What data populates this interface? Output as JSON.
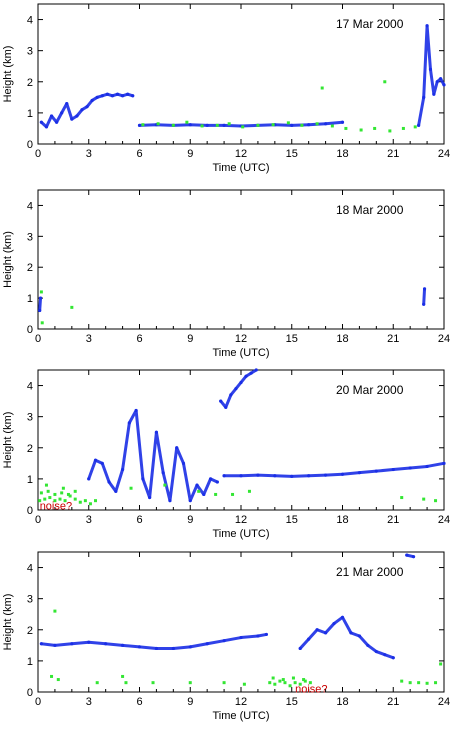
{
  "colors": {
    "series_primary": "#1a2ee6",
    "series_secondary": "#33e633",
    "annotation": "#cc0000",
    "axes": "#000000",
    "background": "#ffffff"
  },
  "chart_data": [
    {
      "type": "scatter",
      "date_label": "17 Mar 2000",
      "xlabel": "Time (UTC)",
      "ylabel": "Height (km)",
      "xlim": [
        0,
        24
      ],
      "ylim": [
        0,
        4.5
      ],
      "x_ticks": [
        0,
        3,
        6,
        9,
        12,
        15,
        18,
        21,
        24
      ],
      "y_ticks": [
        0,
        1,
        2,
        3,
        4
      ],
      "grid": false,
      "series": [
        {
          "color_key": "series_primary",
          "segments": [
            {
              "x": [
                0.2,
                0.5,
                0.8,
                1.1,
                1.4,
                1.7,
                2.0,
                2.3,
                2.6,
                2.9,
                3.2,
                3.5,
                3.8,
                4.1,
                4.4,
                4.7,
                5.0,
                5.3,
                5.6
              ],
              "y": [
                0.7,
                0.55,
                0.9,
                0.7,
                1.0,
                1.3,
                0.8,
                0.9,
                1.1,
                1.2,
                1.4,
                1.5,
                1.55,
                1.6,
                1.55,
                1.6,
                1.55,
                1.6,
                1.55
              ]
            },
            {
              "x": [
                6.0,
                7.0,
                8.0,
                9.0,
                10.0,
                11.0,
                12.0,
                13.0,
                14.0,
                15.0,
                16.0,
                17.0,
                18.0
              ],
              "y": [
                0.6,
                0.62,
                0.6,
                0.62,
                0.6,
                0.6,
                0.58,
                0.6,
                0.62,
                0.6,
                0.62,
                0.65,
                0.7
              ]
            },
            {
              "x": [
                22.5,
                22.8,
                23.0,
                23.2,
                23.4,
                23.6,
                23.8,
                24.0
              ],
              "y": [
                0.6,
                1.5,
                3.8,
                2.4,
                1.6,
                2.0,
                2.1,
                1.9
              ]
            }
          ]
        },
        {
          "color_key": "series_secondary",
          "points": {
            "x": [
              6.2,
              7.1,
              8.0,
              8.8,
              9.7,
              10.6,
              11.3,
              12.1,
              13.0,
              13.9,
              14.8,
              15.6,
              16.5,
              17.4,
              18.2,
              19.1,
              19.9,
              20.8,
              21.6,
              22.3,
              16.8,
              20.5
            ],
            "y": [
              0.62,
              0.65,
              0.6,
              0.7,
              0.58,
              0.6,
              0.65,
              0.55,
              0.6,
              0.62,
              0.68,
              0.6,
              0.65,
              0.58,
              0.5,
              0.45,
              0.5,
              0.42,
              0.5,
              0.55,
              1.8,
              2.0
            ]
          }
        }
      ]
    },
    {
      "type": "scatter",
      "date_label": "18 Mar 2000",
      "xlabel": "Time (UTC)",
      "ylabel": "Height (km)",
      "xlim": [
        0,
        24
      ],
      "ylim": [
        0,
        4.5
      ],
      "x_ticks": [
        0,
        3,
        6,
        9,
        12,
        15,
        18,
        21,
        24
      ],
      "y_ticks": [
        0,
        1,
        2,
        3,
        4
      ],
      "grid": false,
      "series": [
        {
          "color_key": "series_primary",
          "segments": [
            {
              "x": [
                0.1,
                0.15
              ],
              "y": [
                0.6,
                1.0
              ]
            },
            {
              "x": [
                22.8,
                22.85
              ],
              "y": [
                0.8,
                1.3
              ]
            }
          ]
        },
        {
          "color_key": "series_secondary",
          "points": {
            "x": [
              0.2,
              0.25,
              2.0
            ],
            "y": [
              1.2,
              0.2,
              0.7
            ]
          }
        }
      ]
    },
    {
      "type": "scatter",
      "date_label": "20 Mar 2000",
      "xlabel": "Time (UTC)",
      "ylabel": "Height (km)",
      "xlim": [
        0,
        24
      ],
      "ylim": [
        0,
        4.5
      ],
      "x_ticks": [
        0,
        3,
        6,
        9,
        12,
        15,
        18,
        21,
        24
      ],
      "y_ticks": [
        0,
        1,
        2,
        3,
        4
      ],
      "grid": false,
      "annotations": [
        {
          "text": "noise?",
          "x": 0.1,
          "y": 0.15
        }
      ],
      "series": [
        {
          "color_key": "series_primary",
          "segments": [
            {
              "x": [
                3.0,
                3.4,
                3.8,
                4.2,
                4.6,
                5.0,
                5.4,
                5.8,
                6.2,
                6.6,
                7.0,
                7.4,
                7.8,
                8.2,
                8.6,
                9.0,
                9.4,
                9.8,
                10.2,
                10.6
              ],
              "y": [
                1.0,
                1.6,
                1.5,
                0.9,
                0.6,
                1.3,
                2.8,
                3.2,
                1.0,
                0.4,
                2.5,
                1.2,
                0.3,
                2.0,
                1.5,
                0.3,
                0.8,
                0.5,
                1.0,
                0.9
              ]
            },
            {
              "x": [
                10.8,
                11.1,
                11.4,
                11.7,
                12.0,
                12.3,
                12.6,
                12.9
              ],
              "y": [
                3.5,
                3.3,
                3.7,
                3.9,
                4.1,
                4.3,
                4.4,
                4.5
              ]
            },
            {
              "x": [
                11.0,
                12.0,
                13.0,
                14.0,
                15.0,
                16.0,
                17.0,
                18.0,
                19.0,
                20.0,
                21.0,
                22.0,
                23.0,
                24.0
              ],
              "y": [
                1.1,
                1.1,
                1.12,
                1.1,
                1.08,
                1.1,
                1.12,
                1.15,
                1.2,
                1.25,
                1.3,
                1.35,
                1.4,
                1.5
              ]
            }
          ]
        },
        {
          "color_key": "series_secondary",
          "points": {
            "x": [
              0.1,
              0.4,
              0.7,
              1.0,
              1.3,
              1.6,
              1.9,
              2.2,
              2.5,
              2.8,
              3.1,
              3.4,
              0.2,
              0.6,
              1.0,
              1.4,
              1.8,
              2.2,
              0.5,
              1.5,
              5.5,
              7.5,
              9.5,
              10.5,
              11.5,
              12.5,
              21.5,
              22.8,
              23.5
            ],
            "y": [
              0.3,
              0.35,
              0.4,
              0.3,
              0.35,
              0.3,
              0.45,
              0.35,
              0.25,
              0.3,
              0.2,
              0.3,
              0.55,
              0.6,
              0.5,
              0.55,
              0.5,
              0.6,
              0.8,
              0.7,
              0.7,
              0.8,
              0.6,
              0.5,
              0.5,
              0.6,
              0.4,
              0.35,
              0.3
            ]
          }
        }
      ]
    },
    {
      "type": "scatter",
      "date_label": "21 Mar 2000",
      "xlabel": "Time (UTC)",
      "ylabel": "Height (km)",
      "xlim": [
        0,
        24
      ],
      "ylim": [
        0,
        4.5
      ],
      "x_ticks": [
        0,
        3,
        6,
        9,
        12,
        15,
        18,
        21,
        24
      ],
      "y_ticks": [
        0,
        1,
        2,
        3,
        4
      ],
      "grid": false,
      "annotations": [
        {
          "text": "noise?",
          "x": 15.2,
          "y": 0.12
        }
      ],
      "series": [
        {
          "color_key": "series_primary",
          "segments": [
            {
              "x": [
                0.2,
                1.0,
                2.0,
                3.0,
                4.0,
                5.0,
                6.0,
                7.0,
                8.0,
                9.0,
                10.0,
                11.0,
                12.0,
                13.0,
                13.5
              ],
              "y": [
                1.55,
                1.5,
                1.55,
                1.6,
                1.55,
                1.5,
                1.45,
                1.4,
                1.4,
                1.45,
                1.55,
                1.65,
                1.75,
                1.8,
                1.85
              ]
            },
            {
              "x": [
                15.5,
                16.0,
                16.5,
                17.0,
                17.5,
                18.0,
                18.5,
                19.0,
                19.5,
                20.0,
                20.5,
                21.0
              ],
              "y": [
                1.4,
                1.7,
                2.0,
                1.9,
                2.2,
                2.4,
                1.9,
                1.8,
                1.5,
                1.3,
                1.2,
                1.1
              ]
            },
            {
              "x": [
                21.8,
                22.2
              ],
              "y": [
                4.4,
                4.35
              ]
            }
          ]
        },
        {
          "color_key": "series_secondary",
          "points": {
            "x": [
              13.7,
              14.0,
              14.3,
              14.6,
              14.9,
              15.2,
              15.5,
              15.8,
              16.1,
              13.9,
              14.5,
              15.1,
              15.7,
              1.0,
              1.2,
              3.5,
              5.0,
              5.2,
              6.8,
              9.0,
              11.0,
              12.2,
              21.5,
              22.0,
              22.5,
              23.0,
              23.5,
              23.8,
              0.8
            ],
            "y": [
              0.3,
              0.25,
              0.35,
              0.3,
              0.2,
              0.3,
              0.25,
              0.35,
              0.3,
              0.45,
              0.4,
              0.45,
              0.4,
              2.6,
              0.4,
              0.3,
              0.5,
              0.3,
              0.3,
              0.3,
              0.3,
              0.25,
              0.35,
              0.3,
              0.3,
              0.28,
              0.3,
              0.9,
              0.5
            ]
          }
        }
      ]
    }
  ]
}
